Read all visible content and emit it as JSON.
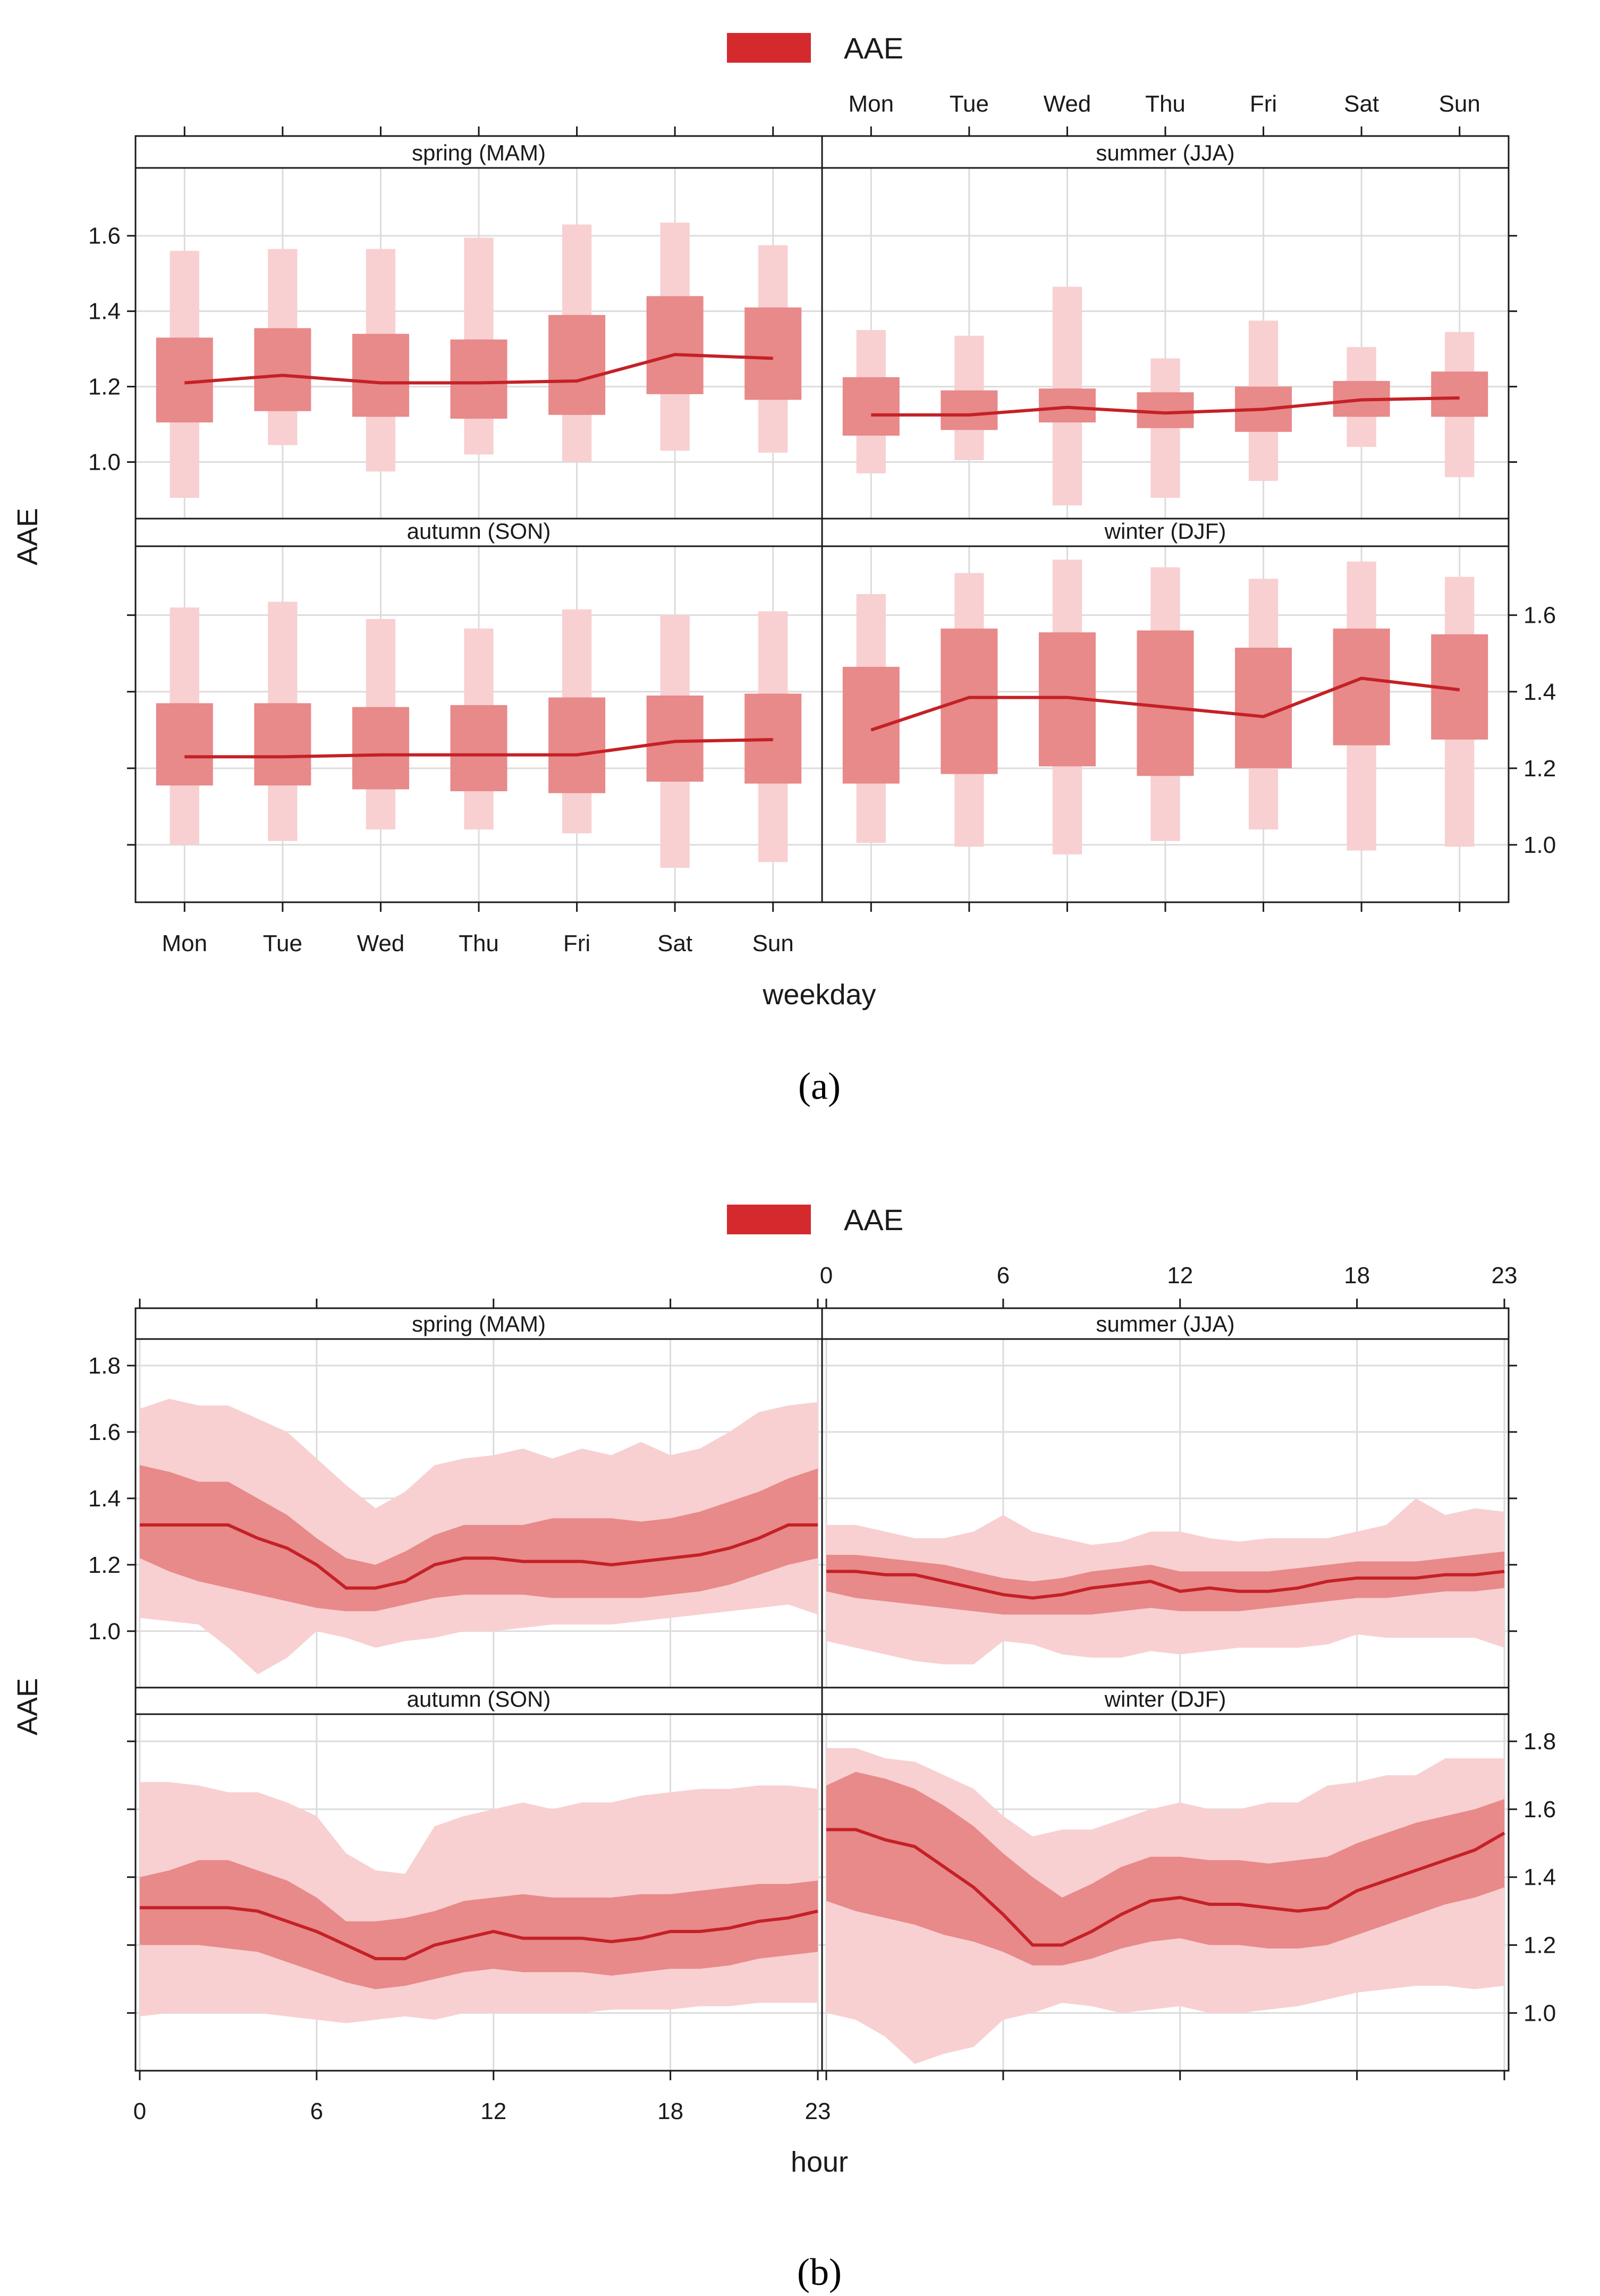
{
  "figure": {
    "captions": [
      "(a)",
      "(b)"
    ]
  },
  "chart_data": [
    {
      "type": "bar",
      "id": "a",
      "description": "Box-style quantile ranges by weekday per season",
      "legend": [
        "AAE"
      ],
      "xlabel": "weekday",
      "ylabel": "AAE",
      "categories": [
        "Mon",
        "Tue",
        "Wed",
        "Thu",
        "Fri",
        "Sat",
        "Sun"
      ],
      "ylim": [
        0.85,
        1.78
      ],
      "y_ticks": [
        1.0,
        1.2,
        1.4,
        1.6
      ],
      "y_tick_labels": [
        "1.0",
        "1.2",
        "1.4",
        "1.6"
      ],
      "colors": {
        "line": "#c42126",
        "inner": "#e8898a",
        "outer": "#f8d0d1",
        "legend": "#d42a2e"
      },
      "panels": [
        {
          "strip": "spring (MAM)",
          "median": [
            1.21,
            1.23,
            1.21,
            1.21,
            1.215,
            1.285,
            1.275
          ],
          "q25": [
            1.105,
            1.135,
            1.12,
            1.115,
            1.125,
            1.18,
            1.165
          ],
          "q75": [
            1.33,
            1.355,
            1.34,
            1.325,
            1.39,
            1.44,
            1.41
          ],
          "q05": [
            0.905,
            1.045,
            0.975,
            1.02,
            1.0,
            1.03,
            1.025
          ],
          "q95": [
            1.56,
            1.565,
            1.565,
            1.595,
            1.63,
            1.635,
            1.575
          ]
        },
        {
          "strip": "summer (JJA)",
          "median": [
            1.125,
            1.125,
            1.145,
            1.13,
            1.14,
            1.165,
            1.17
          ],
          "q25": [
            1.07,
            1.085,
            1.105,
            1.09,
            1.08,
            1.12,
            1.12
          ],
          "q75": [
            1.225,
            1.19,
            1.195,
            1.185,
            1.2,
            1.215,
            1.24
          ],
          "q05": [
            0.97,
            1.005,
            0.885,
            0.905,
            0.95,
            1.04,
            0.96
          ],
          "q95": [
            1.35,
            1.335,
            1.465,
            1.275,
            1.375,
            1.305,
            1.345
          ]
        },
        {
          "strip": "autumn (SON)",
          "median": [
            1.23,
            1.23,
            1.235,
            1.235,
            1.235,
            1.27,
            1.275
          ],
          "q25": [
            1.155,
            1.155,
            1.145,
            1.14,
            1.135,
            1.165,
            1.16
          ],
          "q75": [
            1.37,
            1.37,
            1.36,
            1.365,
            1.385,
            1.39,
            1.395
          ],
          "q05": [
            1.0,
            1.01,
            1.04,
            1.04,
            1.03,
            0.94,
            0.955
          ],
          "q95": [
            1.62,
            1.635,
            1.59,
            1.565,
            1.615,
            1.6,
            1.61
          ]
        },
        {
          "strip": "winter (DJF)",
          "median": [
            1.3,
            1.385,
            1.385,
            1.36,
            1.335,
            1.435,
            1.405
          ],
          "q25": [
            1.16,
            1.185,
            1.205,
            1.18,
            1.2,
            1.26,
            1.275
          ],
          "q75": [
            1.465,
            1.565,
            1.555,
            1.56,
            1.515,
            1.565,
            1.55
          ],
          "q05": [
            1.005,
            0.995,
            0.975,
            1.01,
            1.04,
            0.985,
            0.995
          ],
          "q95": [
            1.655,
            1.71,
            1.745,
            1.725,
            1.695,
            1.74,
            1.7
          ]
        }
      ]
    },
    {
      "type": "area",
      "id": "b",
      "description": "Diurnal median with 25-75% and 5-95% bands per season",
      "legend": [
        "AAE"
      ],
      "xlabel": "hour",
      "ylabel": "AAE",
      "x_ticks": [
        0,
        6,
        12,
        18,
        23
      ],
      "x_tick_labels": [
        "0",
        "6",
        "12",
        "18",
        "23"
      ],
      "ylim": [
        0.83,
        1.88
      ],
      "y_ticks": [
        1.0,
        1.2,
        1.4,
        1.6,
        1.8
      ],
      "y_tick_labels": [
        "1.0",
        "1.2",
        "1.4",
        "1.6",
        "1.8"
      ],
      "colors": {
        "line": "#c42126",
        "inner": "#e8898a",
        "outer": "#f8d0d1",
        "legend": "#d42a2e"
      },
      "hours": [
        0,
        1,
        2,
        3,
        4,
        5,
        6,
        7,
        8,
        9,
        10,
        11,
        12,
        13,
        14,
        15,
        16,
        17,
        18,
        19,
        20,
        21,
        22,
        23
      ],
      "panels": [
        {
          "strip": "spring (MAM)",
          "median": [
            1.32,
            1.32,
            1.32,
            1.32,
            1.28,
            1.25,
            1.2,
            1.13,
            1.13,
            1.15,
            1.2,
            1.22,
            1.22,
            1.21,
            1.21,
            1.21,
            1.2,
            1.21,
            1.22,
            1.23,
            1.25,
            1.28,
            1.32,
            1.32
          ],
          "q25": [
            1.22,
            1.18,
            1.15,
            1.13,
            1.11,
            1.09,
            1.07,
            1.06,
            1.06,
            1.08,
            1.1,
            1.11,
            1.11,
            1.11,
            1.1,
            1.1,
            1.1,
            1.1,
            1.11,
            1.12,
            1.14,
            1.17,
            1.2,
            1.22
          ],
          "q75": [
            1.5,
            1.48,
            1.45,
            1.45,
            1.4,
            1.35,
            1.28,
            1.22,
            1.2,
            1.24,
            1.29,
            1.32,
            1.32,
            1.32,
            1.34,
            1.34,
            1.34,
            1.33,
            1.34,
            1.36,
            1.39,
            1.42,
            1.46,
            1.49
          ],
          "q05": [
            1.04,
            1.03,
            1.02,
            0.95,
            0.87,
            0.92,
            1.0,
            0.98,
            0.95,
            0.97,
            0.98,
            1.0,
            1.0,
            1.01,
            1.02,
            1.02,
            1.02,
            1.03,
            1.04,
            1.05,
            1.06,
            1.07,
            1.08,
            1.05
          ],
          "q95": [
            1.67,
            1.7,
            1.68,
            1.68,
            1.64,
            1.6,
            1.52,
            1.44,
            1.37,
            1.42,
            1.5,
            1.52,
            1.53,
            1.55,
            1.52,
            1.55,
            1.53,
            1.57,
            1.53,
            1.55,
            1.6,
            1.66,
            1.68,
            1.69
          ]
        },
        {
          "strip": "summer (JJA)",
          "median": [
            1.18,
            1.18,
            1.17,
            1.17,
            1.15,
            1.13,
            1.11,
            1.1,
            1.11,
            1.13,
            1.14,
            1.15,
            1.12,
            1.13,
            1.12,
            1.12,
            1.13,
            1.15,
            1.16,
            1.16,
            1.16,
            1.17,
            1.17,
            1.18
          ],
          "q25": [
            1.12,
            1.1,
            1.09,
            1.08,
            1.07,
            1.06,
            1.05,
            1.05,
            1.05,
            1.05,
            1.06,
            1.07,
            1.06,
            1.06,
            1.06,
            1.07,
            1.08,
            1.09,
            1.1,
            1.1,
            1.11,
            1.12,
            1.12,
            1.13
          ],
          "q75": [
            1.23,
            1.23,
            1.22,
            1.21,
            1.2,
            1.18,
            1.16,
            1.15,
            1.16,
            1.18,
            1.19,
            1.2,
            1.18,
            1.18,
            1.18,
            1.18,
            1.19,
            1.2,
            1.21,
            1.21,
            1.21,
            1.22,
            1.23,
            1.24
          ],
          "q05": [
            0.97,
            0.95,
            0.93,
            0.91,
            0.9,
            0.9,
            0.97,
            0.96,
            0.93,
            0.92,
            0.92,
            0.94,
            0.93,
            0.94,
            0.95,
            0.95,
            0.95,
            0.96,
            0.99,
            0.98,
            0.98,
            0.98,
            0.98,
            0.95
          ],
          "q95": [
            1.32,
            1.32,
            1.3,
            1.28,
            1.28,
            1.3,
            1.35,
            1.3,
            1.28,
            1.26,
            1.27,
            1.3,
            1.3,
            1.28,
            1.27,
            1.28,
            1.28,
            1.28,
            1.3,
            1.32,
            1.4,
            1.35,
            1.37,
            1.36
          ]
        },
        {
          "strip": "autumn (SON)",
          "median": [
            1.31,
            1.31,
            1.31,
            1.31,
            1.3,
            1.27,
            1.24,
            1.2,
            1.16,
            1.16,
            1.2,
            1.22,
            1.24,
            1.22,
            1.22,
            1.22,
            1.21,
            1.22,
            1.24,
            1.24,
            1.25,
            1.27,
            1.28,
            1.3
          ],
          "q25": [
            1.2,
            1.2,
            1.2,
            1.19,
            1.18,
            1.15,
            1.12,
            1.09,
            1.07,
            1.08,
            1.1,
            1.12,
            1.13,
            1.12,
            1.12,
            1.12,
            1.11,
            1.12,
            1.13,
            1.13,
            1.14,
            1.16,
            1.17,
            1.18
          ],
          "q75": [
            1.4,
            1.42,
            1.45,
            1.45,
            1.42,
            1.39,
            1.34,
            1.27,
            1.27,
            1.28,
            1.3,
            1.33,
            1.34,
            1.35,
            1.34,
            1.34,
            1.34,
            1.35,
            1.35,
            1.36,
            1.37,
            1.38,
            1.38,
            1.39
          ],
          "q05": [
            0.99,
            1.0,
            1.0,
            1.0,
            1.0,
            0.99,
            0.98,
            0.97,
            0.98,
            0.99,
            0.98,
            1.0,
            1.0,
            1.0,
            1.0,
            1.0,
            1.01,
            1.01,
            1.01,
            1.02,
            1.02,
            1.03,
            1.03,
            1.03
          ],
          "q95": [
            1.68,
            1.68,
            1.67,
            1.65,
            1.65,
            1.62,
            1.58,
            1.47,
            1.42,
            1.41,
            1.55,
            1.58,
            1.6,
            1.62,
            1.6,
            1.62,
            1.62,
            1.64,
            1.65,
            1.66,
            1.66,
            1.67,
            1.67,
            1.66
          ]
        },
        {
          "strip": "winter (DJF)",
          "median": [
            1.54,
            1.54,
            1.51,
            1.49,
            1.43,
            1.37,
            1.29,
            1.2,
            1.2,
            1.24,
            1.29,
            1.33,
            1.34,
            1.32,
            1.32,
            1.31,
            1.3,
            1.31,
            1.36,
            1.39,
            1.42,
            1.45,
            1.48,
            1.53
          ],
          "q25": [
            1.33,
            1.3,
            1.28,
            1.26,
            1.23,
            1.21,
            1.18,
            1.14,
            1.14,
            1.16,
            1.19,
            1.21,
            1.22,
            1.2,
            1.2,
            1.19,
            1.19,
            1.2,
            1.23,
            1.26,
            1.29,
            1.32,
            1.34,
            1.37
          ],
          "q75": [
            1.67,
            1.71,
            1.69,
            1.66,
            1.61,
            1.55,
            1.47,
            1.4,
            1.34,
            1.38,
            1.43,
            1.46,
            1.46,
            1.45,
            1.45,
            1.44,
            1.45,
            1.46,
            1.5,
            1.53,
            1.56,
            1.58,
            1.6,
            1.63
          ],
          "q05": [
            1.0,
            0.98,
            0.93,
            0.85,
            0.88,
            0.9,
            0.98,
            1.0,
            1.03,
            1.02,
            1.0,
            1.01,
            1.02,
            1.0,
            1.0,
            1.01,
            1.02,
            1.04,
            1.06,
            1.07,
            1.08,
            1.08,
            1.07,
            1.08
          ],
          "q95": [
            1.78,
            1.78,
            1.75,
            1.74,
            1.7,
            1.66,
            1.58,
            1.52,
            1.54,
            1.54,
            1.57,
            1.6,
            1.62,
            1.6,
            1.6,
            1.62,
            1.62,
            1.67,
            1.68,
            1.7,
            1.7,
            1.75,
            1.75,
            1.75
          ]
        }
      ]
    }
  ]
}
